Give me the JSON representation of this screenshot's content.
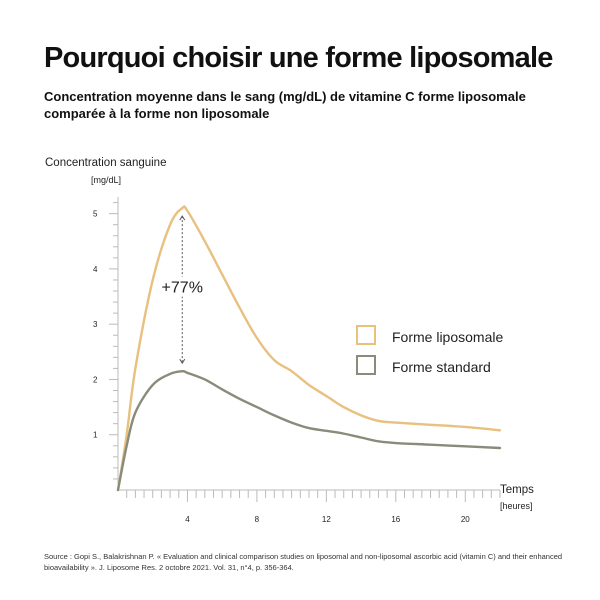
{
  "title": "Pourquoi choisir une forme liposomale",
  "subtitle": "Concentration moyenne dans le sang (mg/dL) de vitamine C forme liposomale comparée à la forme non liposomale",
  "source": "Source : Gopi S., Balakrishnan P. « Evaluation and clinical comparison studies on liposomal and non-liposomal ascorbic acid (vitamin C) and their enhanced bioavailability ». J. Liposome Res. 2 octobre 2021. Vol. 31, n°4, p. 356-364.",
  "chart_data": {
    "type": "line",
    "ylabel": "Concentration sanguine",
    "yunit": "[mg/dL]",
    "xlabel": "Temps",
    "xunit": "[heures]",
    "ylim": [
      0,
      5.5
    ],
    "xlim": [
      0,
      22
    ],
    "yticks": [
      1,
      2,
      3,
      4,
      5
    ],
    "xticks": [
      4,
      8,
      12,
      16,
      20
    ],
    "legend_position": "right",
    "annotation": {
      "text": "+77%",
      "x": 3.7,
      "y_from": 5.1,
      "y_to": 2.15
    },
    "series": [
      {
        "name": "Forme liposomale",
        "color": "#E8C07F",
        "x": [
          0,
          0.5,
          1,
          2,
          3,
          3.7,
          4,
          5,
          6,
          7,
          8,
          9,
          10,
          11,
          12,
          13,
          14,
          15,
          16,
          18,
          20,
          22
        ],
        "y": [
          0.0,
          1.0,
          2.2,
          3.8,
          4.8,
          5.1,
          5.05,
          4.5,
          3.9,
          3.3,
          2.75,
          2.35,
          2.15,
          1.9,
          1.7,
          1.5,
          1.35,
          1.25,
          1.22,
          1.18,
          1.14,
          1.08
        ]
      },
      {
        "name": "Forme standard",
        "color": "#8A8B7A",
        "x": [
          0,
          0.5,
          1,
          2,
          3,
          3.7,
          4,
          5,
          6,
          7,
          8,
          9,
          10,
          11,
          12,
          13,
          14,
          15,
          16,
          18,
          20,
          22
        ],
        "y": [
          0.0,
          0.8,
          1.4,
          1.9,
          2.1,
          2.15,
          2.12,
          2.0,
          1.82,
          1.65,
          1.5,
          1.35,
          1.22,
          1.12,
          1.07,
          1.02,
          0.95,
          0.88,
          0.85,
          0.82,
          0.79,
          0.76
        ]
      }
    ]
  }
}
